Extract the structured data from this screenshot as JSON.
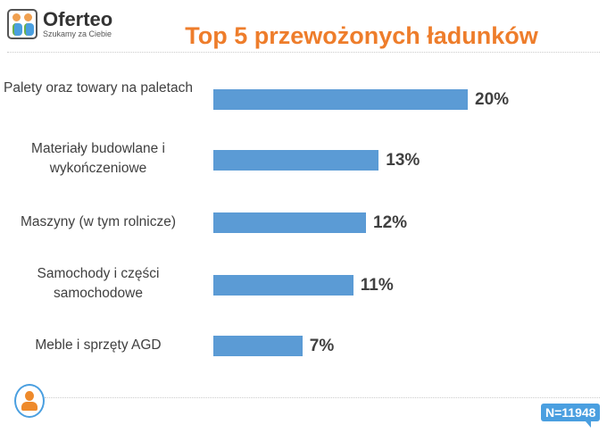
{
  "logo": {
    "name": "Oferteo",
    "tagline": "Szukamy za Ciebie"
  },
  "footer": {
    "sample": "N=11948"
  },
  "colors": {
    "bar": "#5b9bd5",
    "title": "#ee7d2b"
  },
  "chart_data": {
    "type": "bar",
    "orientation": "horizontal",
    "title": "Top 5 przewożonych ładunków",
    "categories": [
      "Palety oraz towary na paletach",
      "Materiały budowlane i wykończeniowe",
      "Maszyny (w tym rolnicze)",
      "Samochody i części samochodowe",
      "Meble i sprzęty AGD"
    ],
    "values": [
      20,
      13,
      12,
      11,
      7
    ],
    "labels": [
      "20%",
      "13%",
      "12%",
      "11%",
      "7%"
    ],
    "unit": "%",
    "grid": false
  }
}
